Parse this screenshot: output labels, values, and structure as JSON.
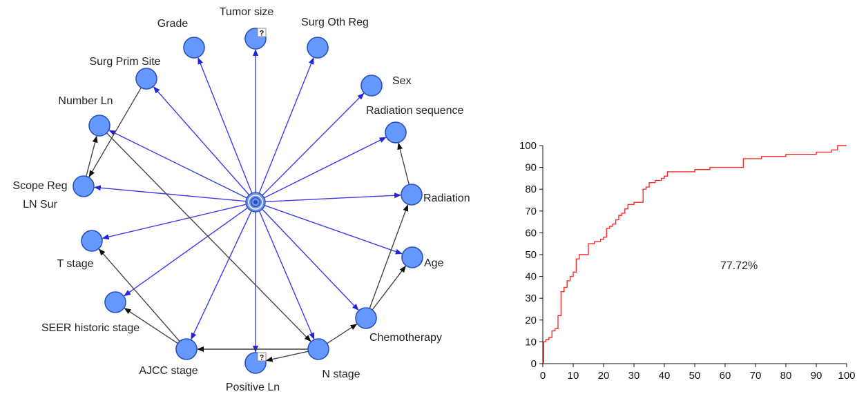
{
  "network": {
    "center_id": "center",
    "node_fill": "#6699ff",
    "node_stroke": "#2b4fb8",
    "blue_edge_color": "#3a3ae6",
    "black_edge_color": "#444444",
    "question_mark": "?",
    "nodes": [
      {
        "id": "grade",
        "label": "Grade"
      },
      {
        "id": "tumor_size",
        "label": "Tumor size",
        "flag": true
      },
      {
        "id": "surg_oth_reg",
        "label": "Surg Oth Reg"
      },
      {
        "id": "surg_prim_site",
        "label": "Surg Prim Site"
      },
      {
        "id": "sex",
        "label": "Sex"
      },
      {
        "id": "number_ln",
        "label": "Number Ln"
      },
      {
        "id": "radiation_sequence",
        "label": "Radiation sequence"
      },
      {
        "id": "scope_reg",
        "label": "Scope Reg LN Sur",
        "label_lines": [
          "Scope Reg",
          "LN Sur"
        ]
      },
      {
        "id": "radiation",
        "label": "Radiation"
      },
      {
        "id": "t_stage",
        "label": "T stage"
      },
      {
        "id": "age",
        "label": "Age"
      },
      {
        "id": "seer",
        "label": "SEER historic stage"
      },
      {
        "id": "chemo",
        "label": "Chemotherapy"
      },
      {
        "id": "ajcc",
        "label": "AJCC stage"
      },
      {
        "id": "n_stage",
        "label": "N stage"
      },
      {
        "id": "positive_ln",
        "label": "Positive Ln",
        "flag": true
      }
    ],
    "blue_edges": [
      "grade",
      "tumor_size",
      "surg_oth_reg",
      "surg_prim_site",
      "sex",
      "number_ln",
      "radiation_sequence",
      "scope_reg",
      "radiation",
      "t_stage",
      "age",
      "seer",
      "chemo",
      "ajcc",
      "n_stage",
      "positive_ln"
    ],
    "black_edges": [
      {
        "from": "surg_prim_site",
        "to": "scope_reg"
      },
      {
        "from": "scope_reg",
        "to": "number_ln"
      },
      {
        "from": "number_ln",
        "to": "n_stage"
      },
      {
        "from": "radiation",
        "to": "radiation_sequence"
      },
      {
        "from": "chemo",
        "to": "radiation"
      },
      {
        "from": "chemo",
        "to": "age"
      },
      {
        "from": "n_stage",
        "to": "chemo"
      },
      {
        "from": "n_stage",
        "to": "positive_ln"
      },
      {
        "from": "n_stage",
        "to": "ajcc"
      },
      {
        "from": "ajcc",
        "to": "t_stage"
      },
      {
        "from": "ajcc",
        "to": "seer"
      }
    ]
  },
  "chart_data": {
    "type": "line",
    "series": [
      {
        "color": "#ff2a2a",
        "x": [
          0,
          0.3,
          1,
          2,
          3,
          4,
          5,
          6,
          7,
          8,
          9,
          10,
          11,
          12,
          13,
          15,
          17,
          19,
          20,
          21,
          22,
          23,
          24,
          25,
          26,
          27,
          28,
          29,
          30,
          31,
          32,
          33,
          34,
          35,
          36,
          37,
          38,
          39,
          40,
          41,
          42,
          45,
          50,
          55,
          60,
          65,
          66,
          70,
          72,
          75,
          80,
          85,
          90,
          95,
          97,
          100
        ],
        "y": [
          0,
          10,
          11,
          12,
          15,
          16,
          22,
          33,
          35,
          38,
          40,
          42,
          48,
          50,
          50,
          55,
          56,
          57,
          58,
          62,
          63,
          64,
          66,
          68,
          69,
          71,
          73,
          73,
          74,
          74,
          74,
          80,
          81,
          83,
          83,
          84,
          84,
          85,
          86,
          88,
          88,
          88,
          89,
          90,
          90,
          90,
          94,
          94,
          95,
          95,
          96,
          96,
          97,
          98,
          100,
          100
        ]
      }
    ],
    "xlim": [
      0,
      100
    ],
    "ylim": [
      0,
      100
    ],
    "x_ticks": [
      0,
      10,
      20,
      30,
      40,
      50,
      60,
      70,
      80,
      90,
      100
    ],
    "y_ticks": [
      0,
      10,
      20,
      30,
      40,
      50,
      60,
      70,
      80,
      90,
      100
    ],
    "annotation": "77.72%",
    "grid": false
  }
}
